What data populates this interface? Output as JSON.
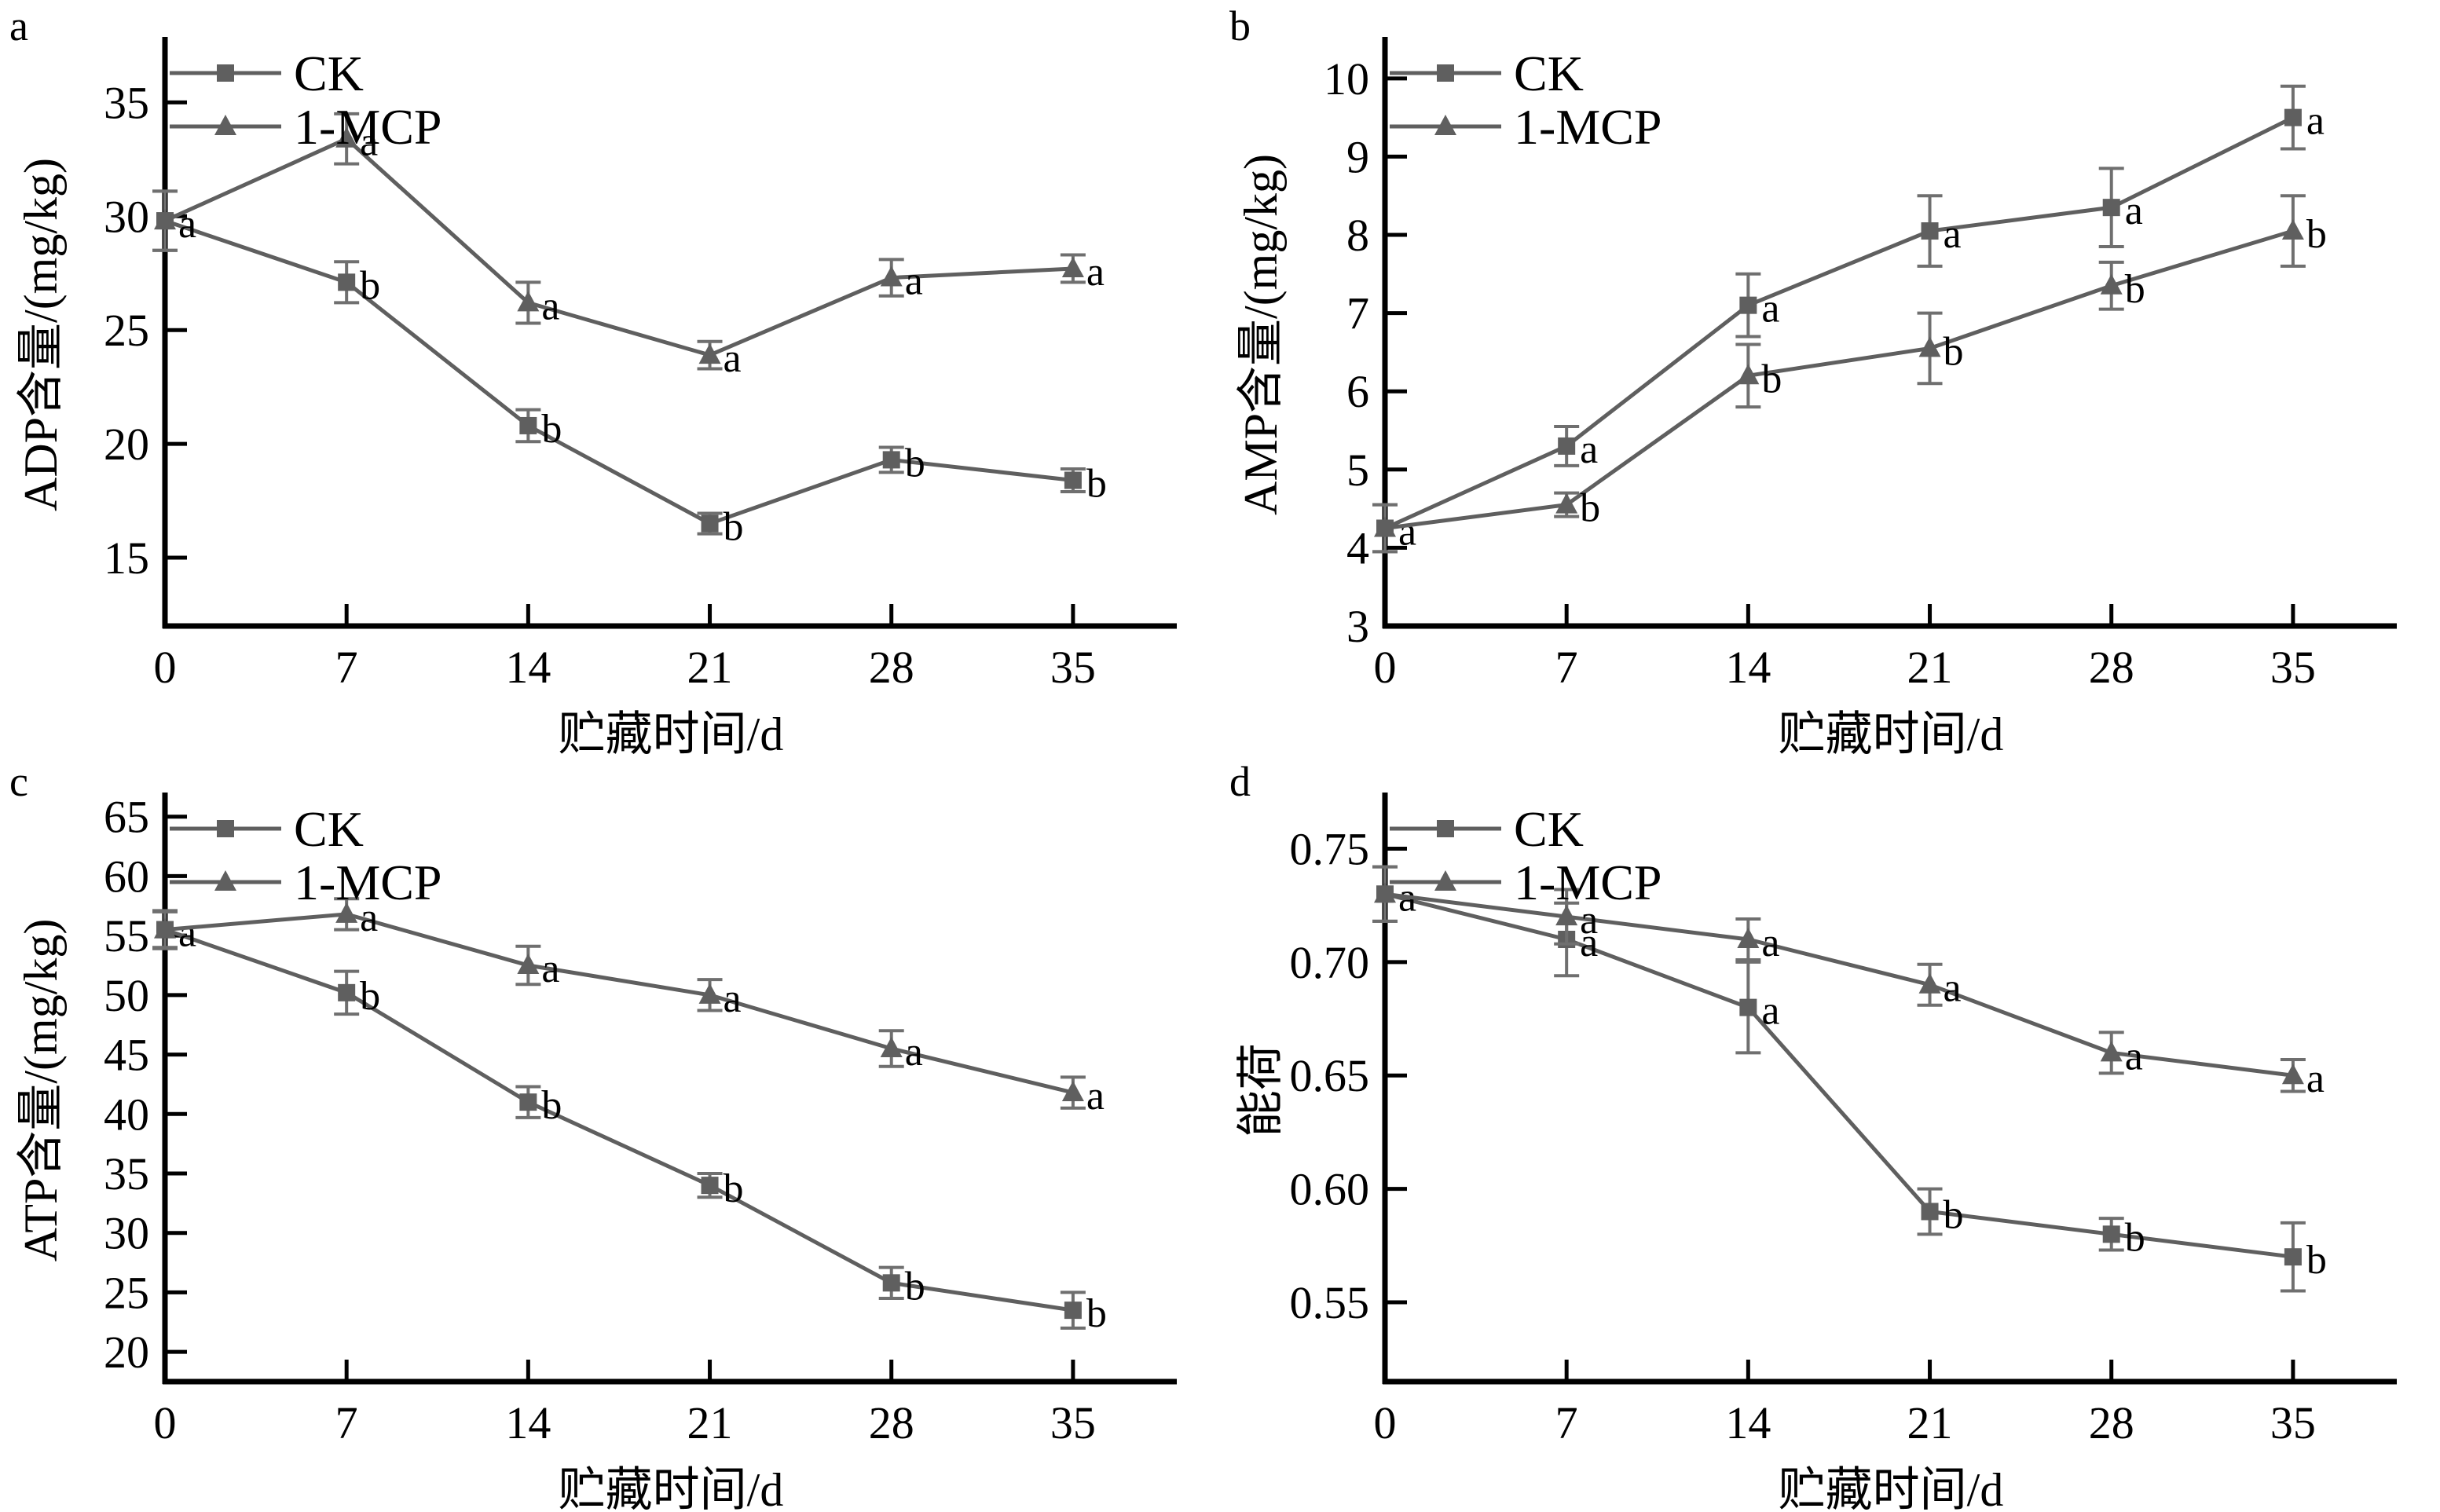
{
  "figure": {
    "xlabel": "贮藏时间/d",
    "legend_items": [
      "CK",
      "1-MCP"
    ],
    "colors": {
      "series": "#5f5f5f",
      "error_bar": "#6f6f6f",
      "axis": "#000000",
      "text": "#000000",
      "background": "#ffffff"
    }
  },
  "chart_data": [
    {
      "type": "line",
      "panel_label": "a",
      "title": "",
      "ylabel": "ADP含量/(mg/kg)",
      "xlabel": "贮藏时间/d",
      "x": [
        0,
        7,
        14,
        21,
        28,
        35
      ],
      "xtick_labels": [
        "0",
        "7",
        "14",
        "21",
        "28",
        "35"
      ],
      "xlim": [
        0,
        39
      ],
      "ylim": [
        12,
        37.6
      ],
      "ytick_values": [
        15,
        20,
        25,
        30,
        35
      ],
      "ytick_labels": [
        "15",
        "20",
        "25",
        "30",
        "35"
      ],
      "grid": false,
      "legend_position": "top-left",
      "series": [
        {
          "name": "CK",
          "marker": "square",
          "values": [
            29.8,
            27.1,
            20.8,
            16.5,
            19.3,
            18.4
          ],
          "errors": [
            1.3,
            0.9,
            0.7,
            0.45,
            0.55,
            0.5
          ],
          "point_labels": [
            "a",
            "b",
            "b",
            "b",
            "b",
            "b"
          ]
        },
        {
          "name": "1-MCP",
          "marker": "triangle",
          "values": [
            29.8,
            33.4,
            26.2,
            23.9,
            27.3,
            27.7
          ],
          "errors": [
            1.3,
            1.1,
            0.9,
            0.6,
            0.8,
            0.6
          ],
          "point_labels": [
            "",
            "a",
            "a",
            "a",
            "a",
            "a"
          ]
        }
      ]
    },
    {
      "type": "line",
      "panel_label": "b",
      "title": "",
      "ylabel": "AMP含量/(mg/kg)",
      "xlabel": "贮藏时间/d",
      "x": [
        0,
        7,
        14,
        21,
        28,
        35
      ],
      "xtick_labels": [
        "0",
        "7",
        "14",
        "21",
        "28",
        "35"
      ],
      "xlim": [
        0,
        39
      ],
      "ylim": [
        3,
        10.45
      ],
      "ytick_values": [
        3,
        4,
        5,
        6,
        7,
        8,
        9,
        10
      ],
      "ytick_labels": [
        "3",
        "4",
        "5",
        "6",
        "7",
        "8",
        "9",
        "10"
      ],
      "grid": false,
      "legend_position": "top-left",
      "series": [
        {
          "name": "CK",
          "marker": "square",
          "values": [
            4.25,
            5.3,
            7.1,
            8.05,
            8.35,
            9.5
          ],
          "errors": [
            0.3,
            0.25,
            0.4,
            0.45,
            0.5,
            0.4
          ],
          "point_labels": [
            "a",
            "a",
            "a",
            "a",
            "a",
            "a"
          ]
        },
        {
          "name": "1-MCP",
          "marker": "triangle",
          "values": [
            4.25,
            4.55,
            6.2,
            6.55,
            7.35,
            8.05
          ],
          "errors": [
            0.3,
            0.15,
            0.4,
            0.45,
            0.3,
            0.45
          ],
          "point_labels": [
            "",
            "b",
            "b",
            "b",
            "b",
            "b"
          ]
        }
      ]
    },
    {
      "type": "line",
      "panel_label": "c",
      "title": "",
      "ylabel": "ATP含量/(mg/kg)",
      "xlabel": "贮藏时间/d",
      "x": [
        0,
        7,
        14,
        21,
        28,
        35
      ],
      "xtick_labels": [
        "0",
        "7",
        "14",
        "21",
        "28",
        "35"
      ],
      "xlim": [
        0,
        39
      ],
      "ylim": [
        17.5,
        66.5
      ],
      "ytick_values": [
        20,
        25,
        30,
        35,
        40,
        45,
        50,
        55,
        60,
        65
      ],
      "ytick_labels": [
        "20",
        "25",
        "30",
        "35",
        "40",
        "45",
        "50",
        "55",
        "60",
        "65"
      ],
      "grid": false,
      "legend_position": "top-left",
      "series": [
        {
          "name": "CK",
          "marker": "square",
          "values": [
            55.5,
            50.2,
            41.0,
            34.0,
            25.8,
            23.5
          ],
          "errors": [
            1.6,
            1.8,
            1.3,
            1.0,
            1.3,
            1.5
          ],
          "point_labels": [
            "a",
            "b",
            "b",
            "b",
            "b",
            "b"
          ]
        },
        {
          "name": "1-MCP",
          "marker": "triangle",
          "values": [
            55.5,
            56.8,
            52.5,
            50.0,
            45.5,
            41.8
          ],
          "errors": [
            1.5,
            1.3,
            1.6,
            1.3,
            1.5,
            1.3
          ],
          "point_labels": [
            "",
            "a",
            "a",
            "a",
            "a",
            "a"
          ]
        }
      ]
    },
    {
      "type": "line",
      "panel_label": "d",
      "title": "",
      "ylabel": "能荷",
      "xlabel": "贮藏时间/d",
      "x": [
        0,
        7,
        14,
        21,
        28,
        35
      ],
      "xtick_labels": [
        "0",
        "7",
        "14",
        "21",
        "28",
        "35"
      ],
      "xlim": [
        0,
        39
      ],
      "ylim": [
        0.515,
        0.772
      ],
      "ytick_values": [
        0.55,
        0.6,
        0.65,
        0.7,
        0.75
      ],
      "ytick_labels": [
        "0.55",
        "0.60",
        "0.65",
        "0.70",
        "0.75"
      ],
      "grid": false,
      "legend_position": "top-left",
      "series": [
        {
          "name": "CK",
          "marker": "square",
          "values": [
            0.73,
            0.71,
            0.68,
            0.59,
            0.58,
            0.57
          ],
          "errors": [
            0.012,
            0.016,
            0.02,
            0.01,
            0.007,
            0.015
          ],
          "point_labels": [
            "a",
            "a",
            "a",
            "b",
            "b",
            "b"
          ]
        },
        {
          "name": "1-MCP",
          "marker": "triangle",
          "values": [
            0.73,
            0.72,
            0.71,
            0.69,
            0.66,
            0.65
          ],
          "errors": [
            0.012,
            0.012,
            0.009,
            0.009,
            0.009,
            0.007
          ],
          "point_labels": [
            "",
            "a",
            "a",
            "a",
            "a",
            "a"
          ]
        }
      ]
    }
  ]
}
